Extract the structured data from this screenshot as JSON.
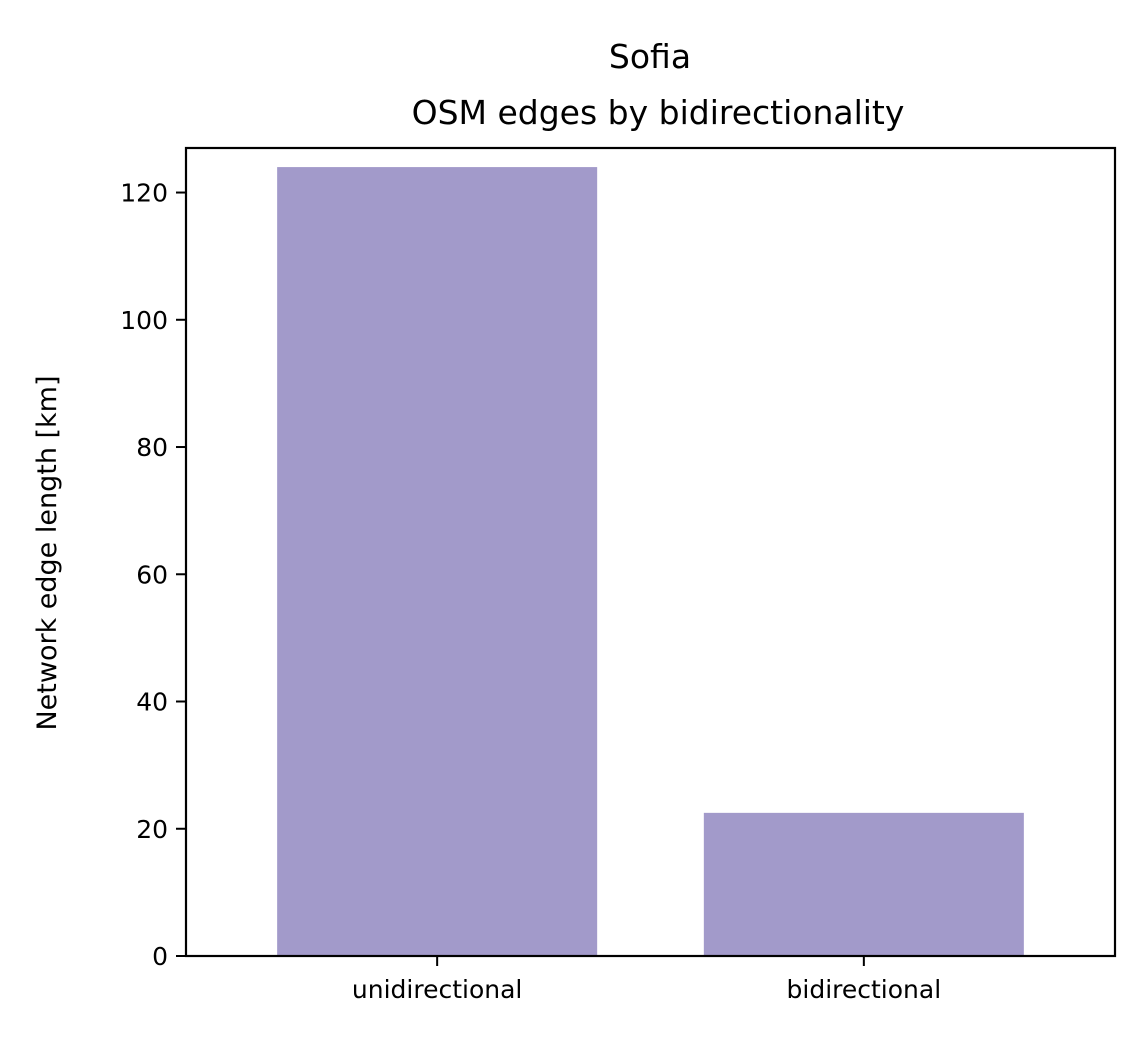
{
  "chart_data": {
    "type": "bar",
    "title": "Sofia",
    "subtitle": "OSM edges by bidirectionality",
    "xlabel": "",
    "ylabel": "Network edge length [km]",
    "categories": [
      "unidirectional",
      "bidirectional"
    ],
    "values": [
      124,
      22.5
    ],
    "ylim": [
      0,
      127
    ],
    "yticks": [
      0,
      20,
      40,
      60,
      80,
      100,
      120
    ],
    "bar_color": "#a29aca",
    "grid": false,
    "legend": "none"
  }
}
